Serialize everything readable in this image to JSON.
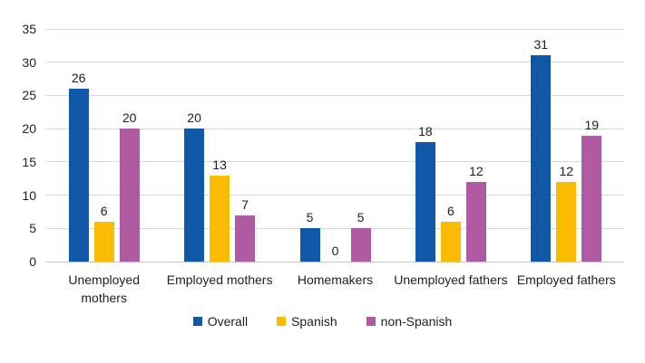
{
  "chart_data": {
    "type": "bar",
    "categories": [
      "Unemployed mothers",
      "Employed mothers",
      "Homemakers",
      "Unemployed fathers",
      "Employed fathers"
    ],
    "series": [
      {
        "name": "Overall",
        "color": "#0e58a7",
        "values": [
          26,
          20,
          5,
          18,
          31
        ]
      },
      {
        "name": "Spanish",
        "color": "#fbbb00",
        "values": [
          6,
          13,
          0,
          6,
          12
        ]
      },
      {
        "name": "non-Spanish",
        "color": "#b05aa3",
        "values": [
          20,
          7,
          5,
          12,
          19
        ]
      }
    ],
    "ylim": [
      0,
      35
    ],
    "yticks": [
      0,
      5,
      10,
      15,
      20,
      25,
      30,
      35
    ],
    "grid": true,
    "data_labels": true,
    "legend_position": "bottom",
    "colors": {
      "gridline": "#d9d9d9",
      "text": "#1f1f1f",
      "background": "#ffffff"
    }
  }
}
